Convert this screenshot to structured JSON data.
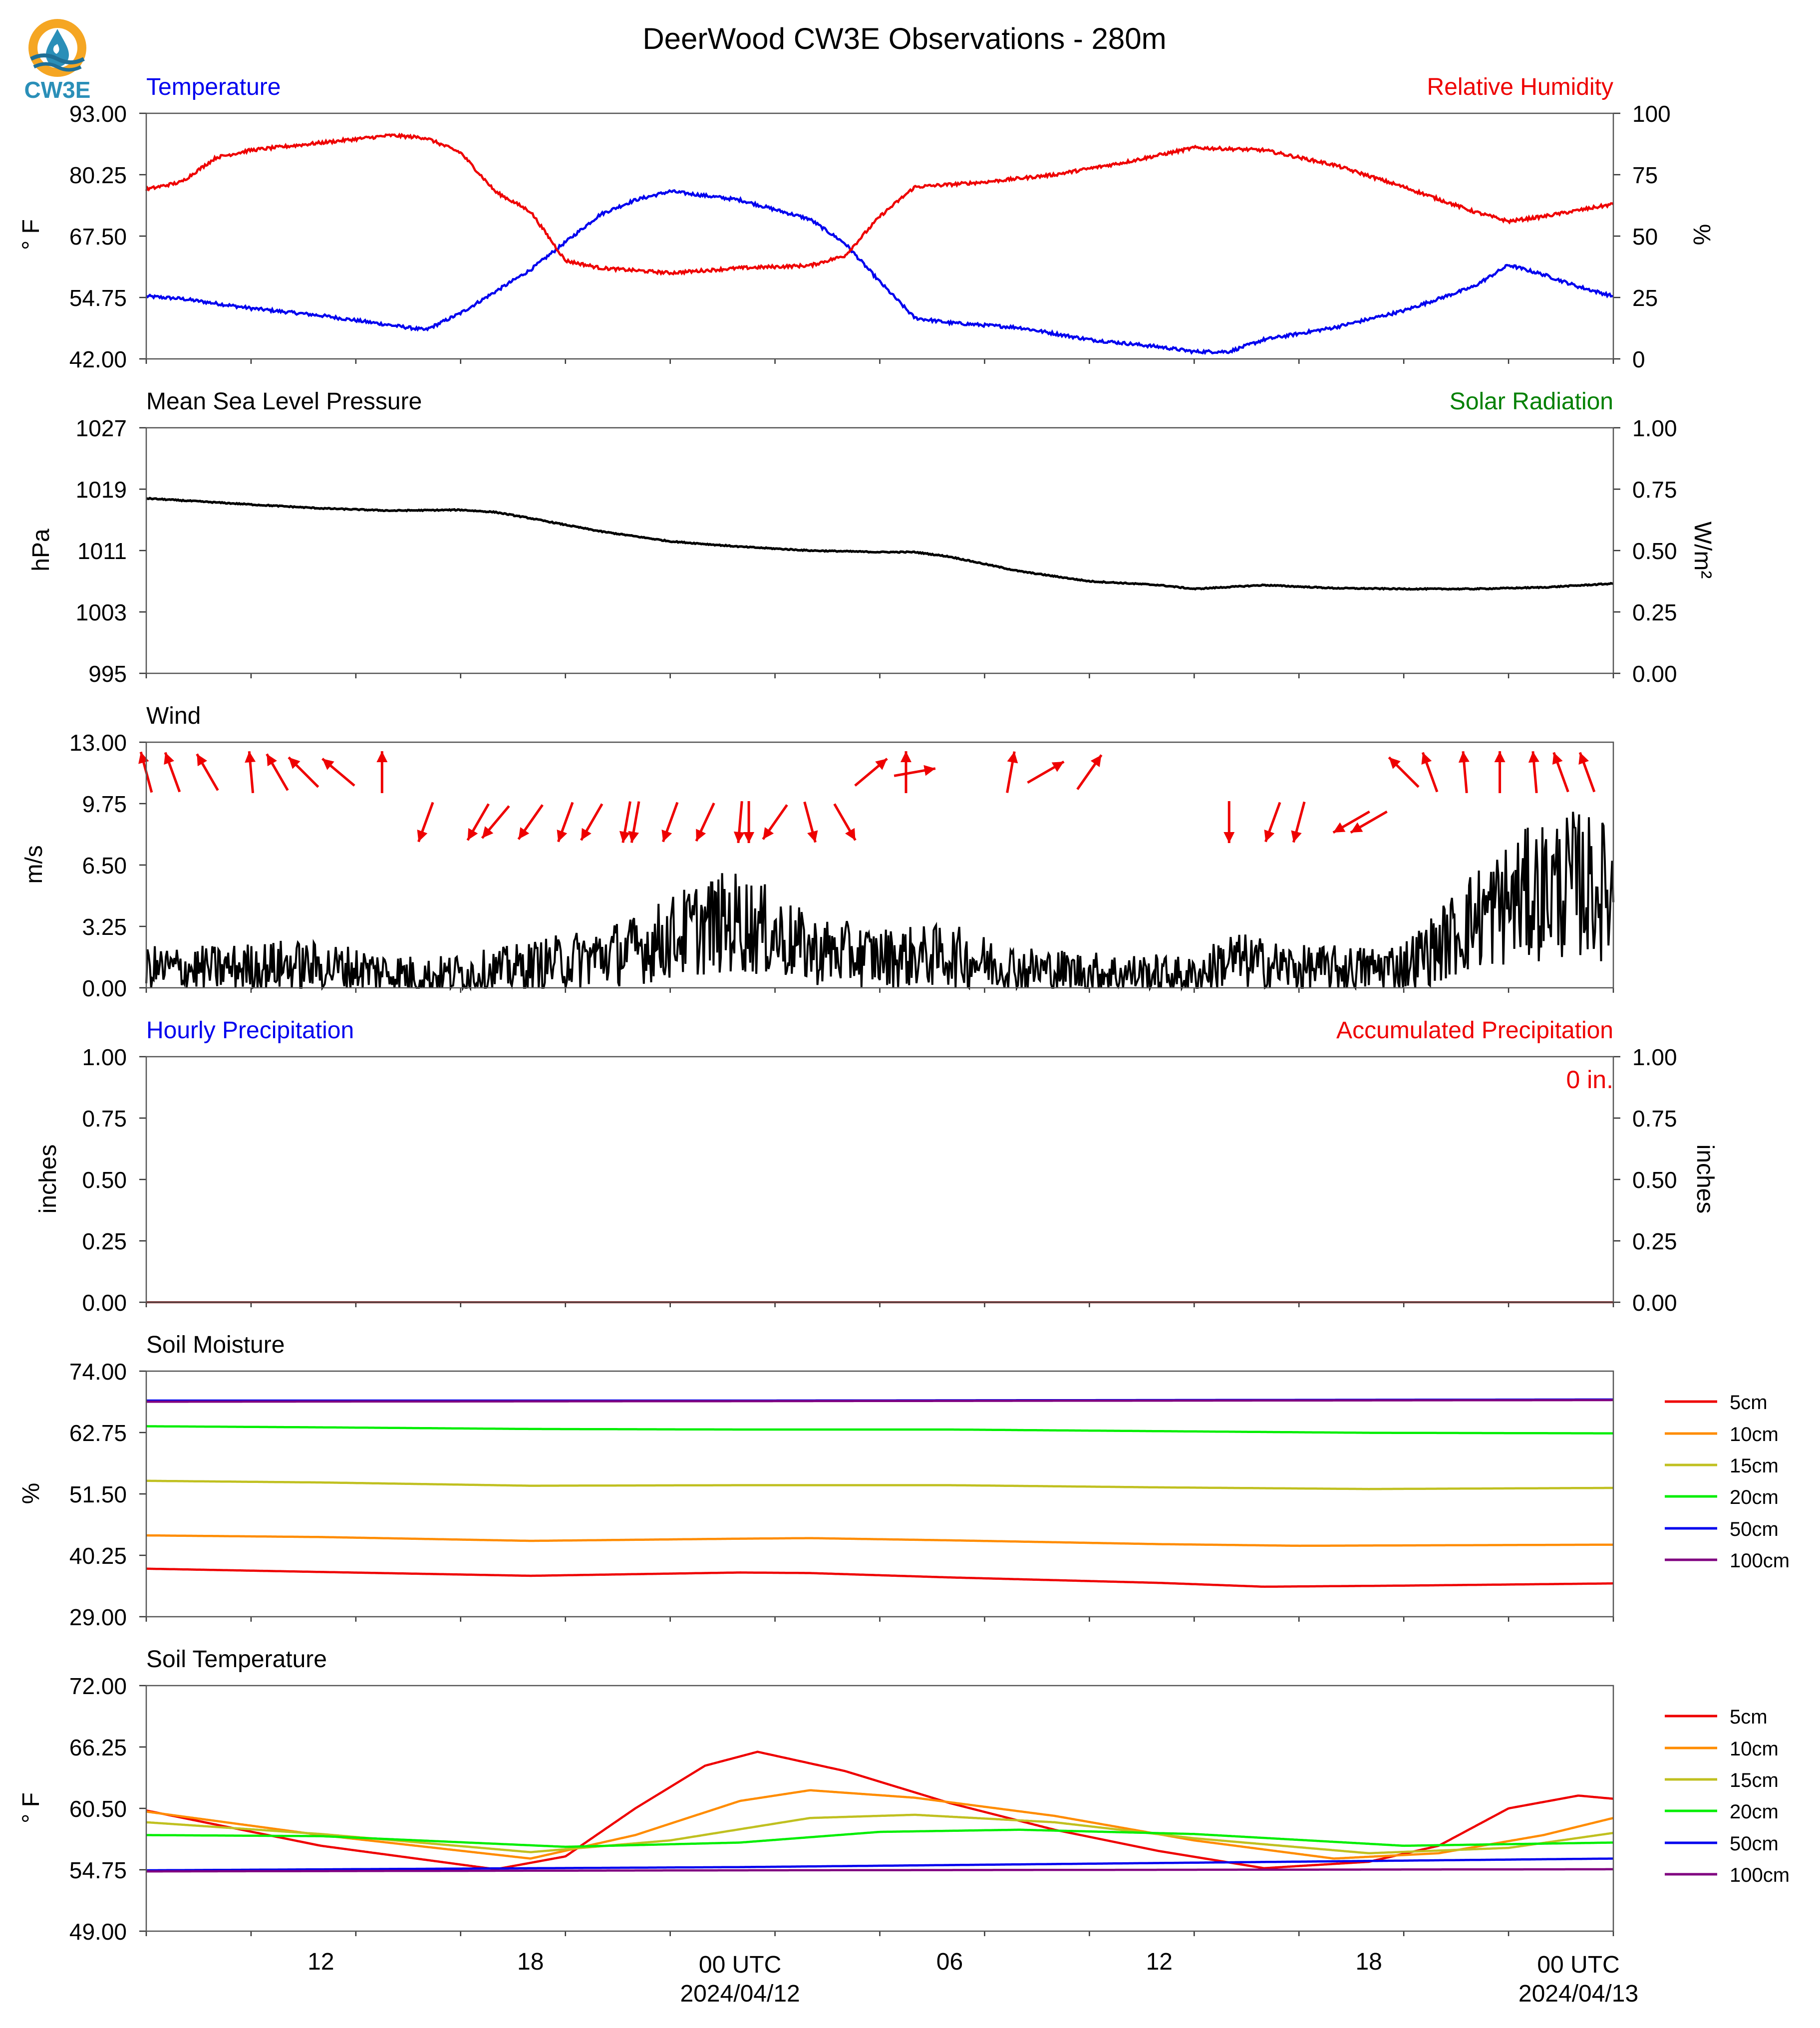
{
  "title": "DeerWood CW3E Observations - 280m",
  "logo": {
    "text": "CW3E",
    "icon": "water-drop-logo-icon",
    "colors": {
      "ring": "#f5a623",
      "drop": "#2a8fb8",
      "waves": "#1f6f96",
      "text": "#2a8fb8"
    }
  },
  "colors": {
    "temperature": "#0000ee",
    "humidity": "#ee0000",
    "pressure": "#000000",
    "solar": "#008000",
    "wind_arrows": "#ee0000",
    "wind_speed": "#000000",
    "hourly_precip": "#0000ee",
    "accum_precip": "#ee0000",
    "precip_line": "#8b0000"
  },
  "x_axis": {
    "start": "2024-04-11T07:00Z",
    "end": "2024-04-13T01:00Z",
    "tick_labels": [
      {
        "time": "2024-04-11T12:00Z",
        "label": "12"
      },
      {
        "time": "2024-04-11T18:00Z",
        "label": "18"
      },
      {
        "time": "2024-04-12T00:00Z",
        "label": "00 UTC",
        "sublabel": "2024/04/12"
      },
      {
        "time": "2024-04-12T06:00Z",
        "label": "06"
      },
      {
        "time": "2024-04-12T12:00Z",
        "label": "12"
      },
      {
        "time": "2024-04-12T18:00Z",
        "label": "18"
      },
      {
        "time": "2024-04-13T00:00Z",
        "label": "00 UTC",
        "sublabel": "2024/04/13"
      }
    ]
  },
  "chart_data": [
    {
      "type": "line",
      "title_left": "Temperature",
      "title_right": "Relative Humidity",
      "ylabel": "° F",
      "ylabel_right": "%",
      "ylim": [
        42,
        93
      ],
      "yticks": [
        "93.00",
        "80.25",
        "67.50",
        "54.75",
        "42.00"
      ],
      "ylim_right": [
        0,
        100
      ],
      "yticks_right": [
        "100",
        "75",
        "50",
        "25",
        "0"
      ],
      "series": [
        {
          "name": "Temperature",
          "axis": "left",
          "color": "#0000ee",
          "x": [
            "2024-04-11T07:00Z",
            "2024-04-11T08:00Z",
            "2024-04-11T10:00Z",
            "2024-04-11T12:00Z",
            "2024-04-11T14:00Z",
            "2024-04-11T15:00Z",
            "2024-04-11T16:00Z",
            "2024-04-11T18:00Z",
            "2024-04-11T20:00Z",
            "2024-04-11T21:00Z",
            "2024-04-11T22:00Z",
            "2024-04-12T00:00Z",
            "2024-04-12T02:00Z",
            "2024-04-12T03:00Z",
            "2024-04-12T04:00Z",
            "2024-04-12T05:00Z",
            "2024-04-12T06:00Z",
            "2024-04-12T08:00Z",
            "2024-04-12T10:00Z",
            "2024-04-12T12:00Z",
            "2024-04-12T13:00Z",
            "2024-04-12T14:00Z",
            "2024-04-12T15:00Z",
            "2024-04-12T17:00Z",
            "2024-04-12T19:00Z",
            "2024-04-12T21:00Z",
            "2024-04-12T22:00Z",
            "2024-04-12T23:00Z",
            "2024-04-13T00:00Z",
            "2024-04-13T01:00Z"
          ],
          "values": [
            55.0,
            54.5,
            52.5,
            51.0,
            49.0,
            48.0,
            51.5,
            60.5,
            72.0,
            75.0,
            76.8,
            75.0,
            71.0,
            66.0,
            58.0,
            50.5,
            49.5,
            48.5,
            46.0,
            44.5,
            43.5,
            43.5,
            46.0,
            48.5,
            52.0,
            57.0,
            61.5,
            59.5,
            57.0,
            55.0
          ]
        },
        {
          "name": "Relative Humidity",
          "axis": "right",
          "color": "#ee0000",
          "x": [
            "2024-04-11T07:00Z",
            "2024-04-11T08:00Z",
            "2024-04-11T09:00Z",
            "2024-04-11T10:00Z",
            "2024-04-11T12:00Z",
            "2024-04-11T14:00Z",
            "2024-04-11T15:00Z",
            "2024-04-11T16:00Z",
            "2024-04-11T17:00Z",
            "2024-04-11T18:00Z",
            "2024-04-11T19:00Z",
            "2024-04-11T20:00Z",
            "2024-04-11T22:00Z",
            "2024-04-12T00:00Z",
            "2024-04-12T02:00Z",
            "2024-04-12T03:00Z",
            "2024-04-12T04:00Z",
            "2024-04-12T05:00Z",
            "2024-04-12T07:00Z",
            "2024-04-12T09:00Z",
            "2024-04-12T11:00Z",
            "2024-04-12T12:00Z",
            "2024-04-12T13:00Z",
            "2024-04-12T15:00Z",
            "2024-04-12T17:00Z",
            "2024-04-12T19:00Z",
            "2024-04-12T21:00Z",
            "2024-04-12T22:00Z",
            "2024-04-12T23:00Z",
            "2024-04-13T01:00Z"
          ],
          "values": [
            69,
            72,
            82,
            85,
            88,
            91,
            90,
            84,
            68,
            60,
            40,
            37,
            35,
            37,
            38,
            42,
            58,
            70,
            72,
            75,
            80,
            83,
            86,
            85,
            79,
            70,
            60,
            56,
            58,
            63
          ]
        }
      ]
    },
    {
      "type": "line",
      "title_left": "Mean Sea Level Pressure",
      "title_right": "Solar Radiation",
      "ylabel": "hPa",
      "ylabel_right": "W/m²",
      "ylim": [
        995,
        1027
      ],
      "yticks": [
        "1027",
        "1019",
        "1011",
        "1003",
        "995"
      ],
      "ylim_right": [
        0,
        1
      ],
      "yticks_right": [
        "1.00",
        "0.75",
        "0.50",
        "0.25",
        "0.00"
      ],
      "series": [
        {
          "name": "Mean Sea Level Pressure",
          "axis": "left",
          "color": "#000000",
          "x": [
            "2024-04-11T07:00Z",
            "2024-04-11T10:00Z",
            "2024-04-11T12:00Z",
            "2024-04-11T14:00Z",
            "2024-04-11T16:00Z",
            "2024-04-11T17:00Z",
            "2024-04-11T18:00Z",
            "2024-04-11T20:00Z",
            "2024-04-11T22:00Z",
            "2024-04-12T00:00Z",
            "2024-04-12T02:00Z",
            "2024-04-12T04:00Z",
            "2024-04-12T05:00Z",
            "2024-04-12T06:00Z",
            "2024-04-12T08:00Z",
            "2024-04-12T10:00Z",
            "2024-04-12T12:00Z",
            "2024-04-12T13:00Z",
            "2024-04-12T15:00Z",
            "2024-04-12T17:00Z",
            "2024-04-12T19:00Z",
            "2024-04-12T21:00Z",
            "2024-04-12T23:00Z",
            "2024-04-13T01:00Z"
          ],
          "values": [
            1017.8,
            1017.0,
            1016.5,
            1016.2,
            1016.3,
            1016.0,
            1015.2,
            1013.5,
            1012.2,
            1011.5,
            1011.0,
            1010.8,
            1010.8,
            1010.2,
            1008.3,
            1007.0,
            1006.5,
            1006.0,
            1006.5,
            1006.1,
            1006.0,
            1006.0,
            1006.2,
            1006.7
          ]
        }
      ]
    },
    {
      "type": "line",
      "title_left": "Wind",
      "ylabel": "m/s",
      "ylim": [
        0,
        13
      ],
      "yticks": [
        "13.00",
        "9.75",
        "6.50",
        "3.25",
        "0.00"
      ],
      "series": [
        {
          "name": "Wind",
          "axis": "left",
          "color": "#000000",
          "x": [
            "2024-04-11T07:00Z",
            "2024-04-11T09:00Z",
            "2024-04-11T11:00Z",
            "2024-04-11T13:00Z",
            "2024-04-11T15:00Z",
            "2024-04-11T17:00Z",
            "2024-04-11T19:00Z",
            "2024-04-11T21:00Z",
            "2024-04-11T23:00Z",
            "2024-04-12T00:00Z",
            "2024-04-12T01:00Z",
            "2024-04-12T02:00Z",
            "2024-04-12T04:00Z",
            "2024-04-12T06:00Z",
            "2024-04-12T08:00Z",
            "2024-04-12T10:00Z",
            "2024-04-12T12:00Z",
            "2024-04-12T13:00Z",
            "2024-04-12T14:00Z",
            "2024-04-12T16:00Z",
            "2024-04-12T18:00Z",
            "2024-04-12T19:00Z",
            "2024-04-12T20:00Z",
            "2024-04-12T21:00Z",
            "2024-04-12T22:00Z",
            "2024-04-12T23:00Z",
            "2024-04-13T00:00Z",
            "2024-04-13T01:00Z"
          ],
          "values": [
            1.0,
            1.0,
            1.2,
            1.0,
            0.6,
            0.9,
            1.4,
            2.0,
            3.3,
            3.5,
            2.8,
            2.0,
            1.6,
            1.7,
            1.0,
            0.8,
            0.7,
            0.6,
            1.5,
            1.0,
            1.0,
            1.2,
            2.2,
            3.6,
            4.5,
            5.2,
            5.5,
            5.0
          ]
        }
      ],
      "wind_arrows": {
        "x": [
          "2024-04-11T07:00Z",
          "2024-04-11T07:45Z",
          "2024-04-11T08:45Z",
          "2024-04-11T10:00Z",
          "2024-04-11T10:45Z",
          "2024-04-11T11:30Z",
          "2024-04-11T12:30Z",
          "2024-04-11T13:45Z",
          "2024-04-11T15:00Z",
          "2024-04-11T16:30Z",
          "2024-04-11T17:00Z",
          "2024-04-11T18:00Z",
          "2024-04-11T19:00Z",
          "2024-04-11T19:45Z",
          "2024-04-11T20:45Z",
          "2024-04-11T21:00Z",
          "2024-04-11T22:00Z",
          "2024-04-11T23:00Z",
          "2024-04-12T00:00Z",
          "2024-04-12T00:15Z",
          "2024-04-12T01:00Z",
          "2024-04-12T02:00Z",
          "2024-04-12T03:00Z",
          "2024-04-12T03:45Z",
          "2024-04-12T04:45Z",
          "2024-04-12T05:00Z",
          "2024-04-12T07:45Z",
          "2024-04-12T08:45Z",
          "2024-04-12T10:00Z",
          "2024-04-12T14:00Z",
          "2024-04-12T15:15Z",
          "2024-04-12T16:00Z",
          "2024-04-12T17:30Z",
          "2024-04-12T18:00Z",
          "2024-04-12T19:00Z",
          "2024-04-12T19:45Z",
          "2024-04-12T20:45Z",
          "2024-04-12T21:45Z",
          "2024-04-12T22:45Z",
          "2024-04-12T23:30Z",
          "2024-04-13T00:15Z"
        ],
        "from_deg": [
          165,
          160,
          150,
          175,
          150,
          135,
          130,
          180,
          20,
          30,
          40,
          35,
          20,
          30,
          10,
          10,
          20,
          25,
          5,
          0,
          35,
          345,
          330,
          230,
          180,
          260,
          190,
          240,
          215,
          0,
          20,
          15,
          60,
          60,
          135,
          160,
          175,
          180,
          175,
          160,
          160
        ],
        "length_fraction": [
          0.6,
          0.6,
          0.6,
          0.6,
          0.6,
          0.6,
          0.6,
          0.6,
          0.6,
          0.6,
          0.6,
          0.6,
          0.6,
          0.6,
          0.6,
          0.6,
          0.6,
          0.6,
          0.6,
          0.6,
          0.6,
          0.6,
          0.6,
          0.6,
          0.6,
          0.6,
          0.6,
          0.6,
          0.6,
          0.6,
          0.6,
          0.6,
          0.6,
          0.6,
          0.6,
          0.6,
          0.6,
          0.6,
          0.6,
          0.6,
          0.6
        ]
      }
    },
    {
      "type": "line",
      "title_left": "Hourly Precipitation",
      "title_right": "Accumulated Precipitation",
      "annotation": "0 in.",
      "ylabel": "inches",
      "ylabel_right": "inches",
      "ylim": [
        0,
        1
      ],
      "yticks": [
        "1.00",
        "0.75",
        "0.50",
        "0.25",
        "0.00"
      ],
      "ylim_right": [
        0,
        1
      ],
      "yticks_right": [
        "1.00",
        "0.75",
        "0.50",
        "0.25",
        "0.00"
      ],
      "series": [
        {
          "name": "Accumulated Precipitation",
          "axis": "right",
          "color": "#8b0000",
          "x": [
            "2024-04-11T07:00Z",
            "2024-04-13T01:00Z"
          ],
          "values": [
            0,
            0
          ]
        }
      ]
    },
    {
      "type": "line",
      "title_left": "Soil Moisture",
      "ylabel": "%",
      "ylim": [
        29,
        74
      ],
      "yticks": [
        "74.00",
        "62.75",
        "51.50",
        "40.25",
        "29.00"
      ],
      "legend": "right",
      "series": [
        {
          "name": "5cm",
          "color": "#ee0000",
          "x": [
            "2024-04-11T07:00Z",
            "2024-04-11T12:00Z",
            "2024-04-11T18:00Z",
            "2024-04-12T00:00Z",
            "2024-04-12T02:00Z",
            "2024-04-12T06:00Z",
            "2024-04-12T12:00Z",
            "2024-04-12T15:00Z",
            "2024-04-12T19:00Z",
            "2024-04-13T01:00Z"
          ],
          "values": [
            37.8,
            37.2,
            36.5,
            37.1,
            37.0,
            36.2,
            35.2,
            34.5,
            34.7,
            35.1
          ]
        },
        {
          "name": "10cm",
          "color": "#ff8c00",
          "x": [
            "2024-04-11T07:00Z",
            "2024-04-11T12:00Z",
            "2024-04-11T18:00Z",
            "2024-04-12T00:00Z",
            "2024-04-12T02:00Z",
            "2024-04-12T06:00Z",
            "2024-04-12T12:00Z",
            "2024-04-12T16:00Z",
            "2024-04-13T01:00Z"
          ],
          "values": [
            43.9,
            43.6,
            42.9,
            43.3,
            43.4,
            43.0,
            42.3,
            42.0,
            42.2
          ]
        },
        {
          "name": "15cm",
          "color": "#c0c020",
          "x": [
            "2024-04-11T07:00Z",
            "2024-04-11T12:00Z",
            "2024-04-11T18:00Z",
            "2024-04-12T00:00Z",
            "2024-04-12T06:00Z",
            "2024-04-12T12:00Z",
            "2024-04-12T18:00Z",
            "2024-04-13T01:00Z"
          ],
          "values": [
            53.9,
            53.6,
            53.0,
            53.1,
            53.1,
            52.7,
            52.4,
            52.6
          ]
        },
        {
          "name": "20cm",
          "color": "#00ee00",
          "x": [
            "2024-04-11T07:00Z",
            "2024-04-11T12:00Z",
            "2024-04-11T18:00Z",
            "2024-04-12T00:00Z",
            "2024-04-12T06:00Z",
            "2024-04-12T12:00Z",
            "2024-04-12T18:00Z",
            "2024-04-13T01:00Z"
          ],
          "values": [
            63.9,
            63.7,
            63.4,
            63.3,
            63.3,
            63.0,
            62.7,
            62.6
          ]
        },
        {
          "name": "50cm",
          "color": "#0000ee",
          "x": [
            "2024-04-11T07:00Z",
            "2024-04-12T00:00Z",
            "2024-04-13T01:00Z"
          ],
          "values": [
            68.6,
            68.6,
            68.8
          ]
        },
        {
          "name": "100cm",
          "color": "#800080",
          "x": [
            "2024-04-11T07:00Z",
            "2024-04-12T00:00Z",
            "2024-04-13T01:00Z"
          ],
          "values": [
            68.4,
            68.5,
            68.7
          ]
        }
      ]
    },
    {
      "type": "line",
      "title_left": "Soil Temperature",
      "ylabel": "° F",
      "ylim": [
        49,
        72
      ],
      "yticks": [
        "72.00",
        "66.25",
        "60.50",
        "54.75",
        "49.00"
      ],
      "legend": "right",
      "series": [
        {
          "name": "5cm",
          "color": "#ee0000",
          "x": [
            "2024-04-11T07:00Z",
            "2024-04-11T12:00Z",
            "2024-04-11T17:00Z",
            "2024-04-11T19:00Z",
            "2024-04-11T21:00Z",
            "2024-04-11T23:00Z",
            "2024-04-12T00:30Z",
            "2024-04-12T03:00Z",
            "2024-04-12T06:00Z",
            "2024-04-12T09:00Z",
            "2024-04-12T12:00Z",
            "2024-04-12T15:00Z",
            "2024-04-12T18:00Z",
            "2024-04-12T20:00Z",
            "2024-04-12T22:00Z",
            "2024-04-13T00:00Z",
            "2024-04-13T01:00Z"
          ],
          "values": [
            60.3,
            57.0,
            54.8,
            56.0,
            60.5,
            64.5,
            65.8,
            64.0,
            61.0,
            58.5,
            56.5,
            54.9,
            55.5,
            57.0,
            60.5,
            61.7,
            61.4
          ]
        },
        {
          "name": "10cm",
          "color": "#ff8c00",
          "x": [
            "2024-04-11T07:00Z",
            "2024-04-11T12:00Z",
            "2024-04-11T18:00Z",
            "2024-04-11T21:00Z",
            "2024-04-12T00:00Z",
            "2024-04-12T02:00Z",
            "2024-04-12T05:00Z",
            "2024-04-12T09:00Z",
            "2024-04-12T13:00Z",
            "2024-04-12T17:00Z",
            "2024-04-12T20:00Z",
            "2024-04-12T23:00Z",
            "2024-04-13T01:00Z"
          ],
          "values": [
            60.2,
            58.0,
            55.8,
            58.0,
            61.2,
            62.2,
            61.5,
            59.8,
            57.5,
            55.8,
            56.3,
            58.0,
            59.6
          ]
        },
        {
          "name": "15cm",
          "color": "#c0c020",
          "x": [
            "2024-04-11T07:00Z",
            "2024-04-11T12:00Z",
            "2024-04-11T18:00Z",
            "2024-04-11T22:00Z",
            "2024-04-12T02:00Z",
            "2024-04-12T05:00Z",
            "2024-04-12T09:00Z",
            "2024-04-12T13:00Z",
            "2024-04-12T18:00Z",
            "2024-04-12T22:00Z",
            "2024-04-13T01:00Z"
          ],
          "values": [
            59.2,
            58.1,
            56.4,
            57.5,
            59.6,
            59.9,
            59.2,
            57.7,
            56.3,
            56.8,
            58.2
          ]
        },
        {
          "name": "20cm",
          "color": "#00ee00",
          "x": [
            "2024-04-11T07:00Z",
            "2024-04-11T12:00Z",
            "2024-04-11T19:00Z",
            "2024-04-12T00:00Z",
            "2024-04-12T04:00Z",
            "2024-04-12T08:00Z",
            "2024-04-12T13:00Z",
            "2024-04-12T19:00Z",
            "2024-04-13T01:00Z"
          ],
          "values": [
            58.0,
            57.9,
            56.9,
            57.3,
            58.3,
            58.5,
            58.1,
            57.0,
            57.3
          ]
        },
        {
          "name": "50cm",
          "color": "#0000ee",
          "x": [
            "2024-04-11T07:00Z",
            "2024-04-12T00:00Z",
            "2024-04-13T01:00Z"
          ],
          "values": [
            54.7,
            55.0,
            55.8
          ]
        },
        {
          "name": "100cm",
          "color": "#800080",
          "x": [
            "2024-04-11T07:00Z",
            "2024-04-12T00:00Z",
            "2024-04-13T01:00Z"
          ],
          "values": [
            54.6,
            54.7,
            54.8
          ]
        }
      ]
    }
  ]
}
